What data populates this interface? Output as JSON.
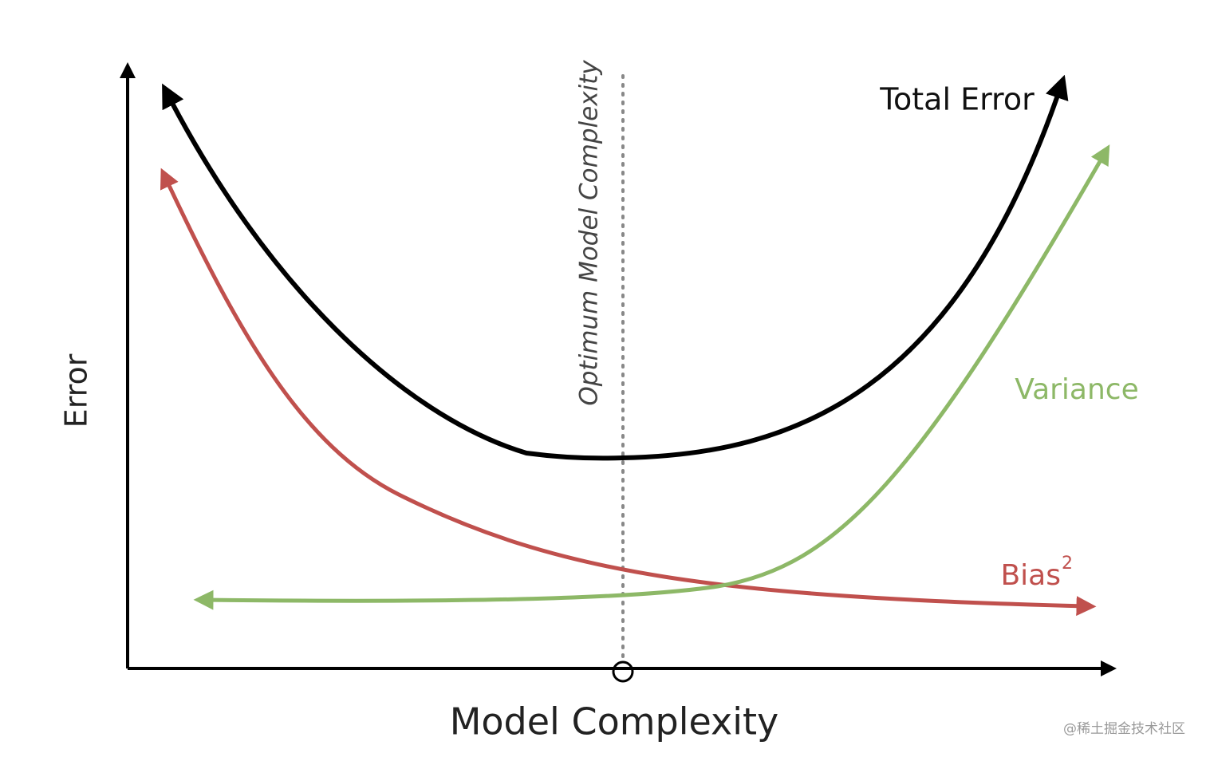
{
  "axes": {
    "y_label": "Error",
    "x_label": "Model Complexity"
  },
  "optimum_label": "Optimum Model Complexity",
  "curves": [
    {
      "label": "Total Error"
    },
    {
      "label": "Variance"
    },
    {
      "label": "Bias",
      "superscript": "2"
    }
  ],
  "watermark": "@稀土掘金技术社区"
}
